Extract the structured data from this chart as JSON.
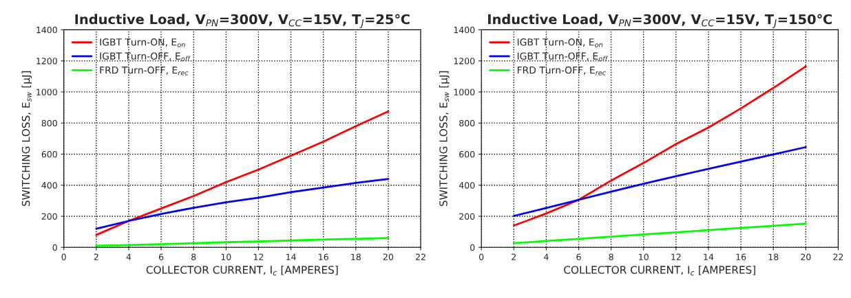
{
  "chart_data": [
    {
      "type": "line",
      "title": "Inductive Load, V$_{PN}$=300V, V$_{CC}$=15V, T$_{J}$=25℃",
      "xlabel": "COLLECTOR CURRENT, I$_{c}$ [AMPERES]",
      "ylabel": "SWITCHING LOSS, E$_{sw}$ [μJ]",
      "x": [
        2,
        4,
        6,
        8,
        10,
        12,
        14,
        16,
        18,
        20
      ],
      "xlim": [
        0,
        22
      ],
      "xticks": [
        0,
        2,
        4,
        6,
        8,
        10,
        12,
        14,
        16,
        18,
        20,
        22
      ],
      "ylim": [
        0,
        1400
      ],
      "yticks": [
        0,
        200,
        400,
        600,
        800,
        1000,
        1200,
        1400
      ],
      "grid": true,
      "legend": "top left",
      "line_style": "solid",
      "marker": "none",
      "series": [
        {
          "name": "IGBT Turn-ON, E$_{on}$",
          "color": "#ff0000",
          "values": [
            80,
            170,
            250,
            330,
            420,
            500,
            590,
            680,
            780,
            875
          ]
        },
        {
          "name": "IGBT Turn-OFF, E$_{off}$",
          "color": "#0000ff",
          "values": [
            120,
            170,
            215,
            255,
            290,
            320,
            355,
            385,
            415,
            440
          ]
        },
        {
          "name": "FRD Turn-OFF, E$_{rec}$",
          "color": "#00ff00",
          "values": [
            10,
            15,
            20,
            27,
            33,
            38,
            44,
            50,
            55,
            60
          ]
        }
      ]
    },
    {
      "type": "line",
      "title": "Inductive Load, V$_{PN}$=300V, V$_{CC}$=15V, T$_{J}$=150℃",
      "xlabel": "COLLECTOR CURRENT, I$_{c}$ [AMPERES]",
      "ylabel": "SWITCHING LOSS, E$_{sw}$ [μJ]",
      "x": [
        2,
        4,
        6,
        8,
        10,
        12,
        14,
        16,
        18,
        20
      ],
      "xlim": [
        0,
        22
      ],
      "xticks": [
        0,
        2,
        4,
        6,
        8,
        10,
        12,
        14,
        16,
        18,
        20,
        22
      ],
      "ylim": [
        0,
        1400
      ],
      "yticks": [
        0,
        200,
        400,
        600,
        800,
        1000,
        1200,
        1400
      ],
      "grid": true,
      "legend": "top left",
      "line_style": "solid",
      "marker": "none",
      "series": [
        {
          "name": "IGBT Turn-ON, E$_{on}$",
          "color": "#ff0000",
          "values": [
            140,
            218,
            306,
            430,
            543,
            665,
            771,
            894,
            1026,
            1165
          ]
        },
        {
          "name": "IGBT Turn-OFF, E$_{off}$",
          "color": "#0000ff",
          "values": [
            202,
            253,
            306,
            358,
            409,
            458,
            505,
            552,
            598,
            645
          ]
        },
        {
          "name": "FRD Turn-OFF, E$_{rec}$",
          "color": "#00ff00",
          "values": [
            27,
            41,
            55,
            69,
            83,
            97,
            111,
            125,
            139,
            153
          ]
        }
      ]
    }
  ]
}
